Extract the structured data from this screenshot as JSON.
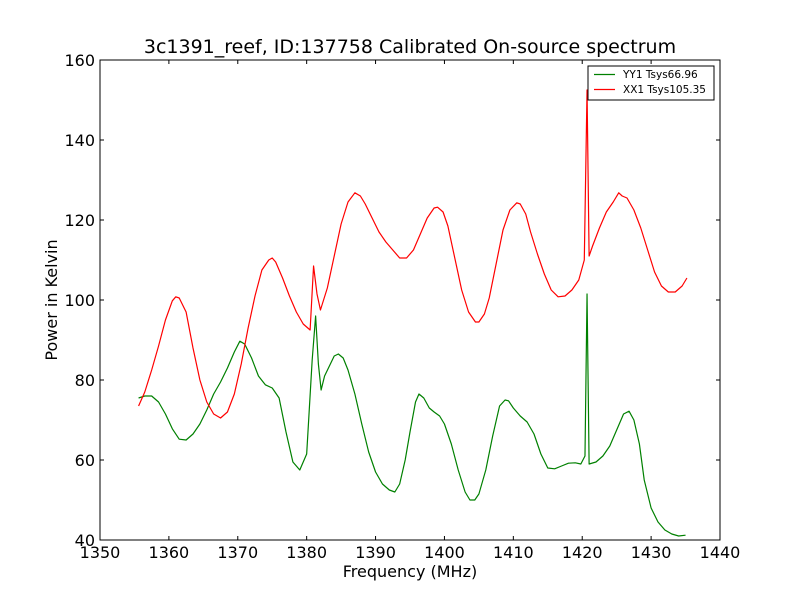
{
  "chart_data": {
    "type": "line",
    "title": "3c1391_reef, ID:137758 Calibrated On-source spectrum",
    "xlabel": "Frequency (MHz)",
    "ylabel": "Power in Kelvin",
    "xlim": [
      1350,
      1440
    ],
    "ylim": [
      40,
      160
    ],
    "xticks": [
      1350,
      1360,
      1370,
      1380,
      1390,
      1400,
      1410,
      1420,
      1430,
      1440
    ],
    "yticks": [
      40,
      60,
      80,
      100,
      120,
      140,
      160
    ],
    "grid": false,
    "legend_position": "top-right",
    "series": [
      {
        "name": "YY1 Tsys66.96",
        "color": "#008000",
        "x": [
          1355.6,
          1356.5,
          1357.5,
          1358.5,
          1359.5,
          1360.5,
          1361.5,
          1362.5,
          1363.5,
          1364.5,
          1365.5,
          1366.5,
          1367.5,
          1368.5,
          1369.5,
          1370.3,
          1371.0,
          1372.0,
          1373.0,
          1374.0,
          1375.0,
          1376.0,
          1377.0,
          1378.0,
          1379.0,
          1380.0,
          1380.8,
          1381.3,
          1381.7,
          1382.1,
          1382.6,
          1383.3,
          1384.0,
          1384.6,
          1385.3,
          1386.0,
          1387.0,
          1388.0,
          1389.0,
          1390.0,
          1391.0,
          1392.0,
          1392.8,
          1393.5,
          1394.3,
          1395.0,
          1395.8,
          1396.3,
          1397.0,
          1397.8,
          1398.5,
          1399.3,
          1400.0,
          1401.0,
          1402.0,
          1403.0,
          1403.7,
          1404.4,
          1405.0,
          1406.0,
          1407.0,
          1408.0,
          1408.8,
          1409.3,
          1410.0,
          1411.0,
          1412.0,
          1413.0,
          1414.0,
          1415.0,
          1416.0,
          1417.0,
          1418.0,
          1419.0,
          1419.8,
          1420.4,
          1420.7,
          1421.0,
          1422.0,
          1423.0,
          1424.0,
          1425.0,
          1426.0,
          1426.8,
          1427.5,
          1428.3,
          1429.0,
          1430.0,
          1431.0,
          1432.0,
          1433.0,
          1434.0,
          1435.0
        ],
        "y": [
          75.5,
          76.0,
          76.0,
          74.5,
          71.5,
          67.8,
          65.2,
          65.0,
          66.5,
          69.0,
          72.5,
          76.5,
          79.5,
          83.0,
          87.0,
          89.7,
          89.0,
          85.5,
          81.0,
          78.8,
          78.0,
          75.5,
          67.0,
          59.5,
          57.5,
          61.5,
          85.0,
          96.0,
          84.0,
          77.5,
          81.0,
          83.5,
          86.0,
          86.5,
          85.5,
          82.5,
          76.5,
          69.0,
          62.0,
          57.0,
          54.0,
          52.5,
          52.0,
          54.0,
          60.0,
          67.0,
          74.5,
          76.5,
          75.5,
          73.0,
          72.0,
          71.0,
          69.0,
          64.0,
          57.5,
          52.0,
          50.0,
          50.0,
          51.5,
          57.5,
          66.0,
          73.5,
          75.0,
          74.8,
          73.0,
          71.0,
          69.5,
          66.5,
          61.5,
          58.0,
          57.8,
          58.5,
          59.2,
          59.3,
          59.0,
          61.0,
          101.5,
          59.0,
          59.5,
          61.0,
          63.5,
          67.5,
          71.5,
          72.2,
          70.0,
          64.0,
          55.0,
          48.0,
          44.5,
          42.5,
          41.5,
          41.0,
          41.2
        ]
      },
      {
        "name": "XX1 Tsys105.35",
        "color": "#ff0000",
        "x": [
          1355.6,
          1356.5,
          1357.5,
          1358.5,
          1359.5,
          1360.5,
          1361.0,
          1361.5,
          1362.5,
          1363.5,
          1364.5,
          1365.5,
          1366.5,
          1367.5,
          1368.5,
          1369.5,
          1370.5,
          1371.5,
          1372.5,
          1373.5,
          1374.5,
          1375.0,
          1375.5,
          1376.5,
          1377.5,
          1378.5,
          1379.5,
          1380.5,
          1381.0,
          1381.5,
          1382.0,
          1383.0,
          1384.0,
          1385.0,
          1386.0,
          1387.0,
          1387.8,
          1388.5,
          1389.5,
          1390.5,
          1391.5,
          1392.5,
          1393.5,
          1394.5,
          1395.5,
          1396.5,
          1397.5,
          1398.5,
          1399.0,
          1399.8,
          1400.5,
          1401.5,
          1402.5,
          1403.5,
          1404.5,
          1405.0,
          1405.8,
          1406.5,
          1407.5,
          1408.5,
          1409.5,
          1410.5,
          1411.0,
          1411.8,
          1412.5,
          1413.5,
          1414.5,
          1415.5,
          1416.5,
          1417.5,
          1418.5,
          1419.5,
          1420.3,
          1420.7,
          1421.0,
          1421.5,
          1422.5,
          1423.5,
          1424.5,
          1425.3,
          1425.8,
          1426.5,
          1427.5,
          1428.5,
          1429.5,
          1430.5,
          1431.5,
          1432.5,
          1433.5,
          1434.5,
          1435.2
        ],
        "y": [
          73.5,
          77.0,
          82.5,
          88.5,
          95.0,
          99.8,
          100.8,
          100.5,
          97.0,
          88.0,
          80.0,
          74.5,
          71.5,
          70.5,
          72.0,
          76.5,
          84.0,
          93.0,
          101.0,
          107.5,
          110.0,
          110.5,
          109.5,
          105.5,
          101.0,
          97.0,
          94.0,
          92.5,
          108.5,
          101.5,
          97.5,
          103.0,
          111.0,
          119.0,
          124.5,
          126.8,
          126.0,
          124.0,
          120.5,
          117.0,
          114.5,
          112.5,
          110.5,
          110.5,
          112.5,
          116.5,
          120.5,
          123.0,
          123.2,
          122.0,
          118.5,
          110.5,
          102.5,
          97.0,
          94.5,
          94.5,
          96.5,
          100.5,
          109.0,
          117.5,
          122.5,
          124.3,
          124.0,
          121.5,
          117.0,
          111.5,
          106.5,
          102.5,
          100.8,
          101.0,
          102.5,
          105.0,
          110.0,
          152.5,
          111.0,
          113.5,
          118.0,
          122.0,
          124.5,
          126.8,
          126.0,
          125.5,
          122.5,
          118.0,
          112.5,
          107.0,
          103.5,
          102.0,
          102.0,
          103.5,
          105.5
        ]
      }
    ]
  }
}
